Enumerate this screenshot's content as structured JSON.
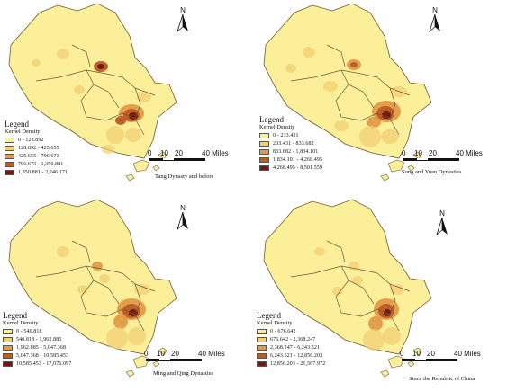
{
  "panels": [
    {
      "north_label": "N",
      "legend_title": "Legend",
      "legend_subtitle": "Kernel Density",
      "classes": [
        "0 - 128.892",
        "128.892 - 425.655",
        "425.655 - 796.673",
        "796.673 - 1,350.881",
        "1,350.881 - 2,246.171"
      ],
      "scale_ticks": [
        "0",
        "10",
        "20",
        "40 Miles"
      ],
      "caption": "Tang Dynasty and before"
    },
    {
      "north_label": "N",
      "legend_title": "Legend",
      "legend_subtitle": "Kernel Density",
      "classes": [
        "0 - 233.431",
        "233.431 - 833.682",
        "833.682 - 1,834.101",
        "1,834.101 - 4,268.495",
        "4,268.495 - 8,501.559"
      ],
      "scale_ticks": [
        "0",
        "10",
        "20",
        "40 Miles"
      ],
      "caption": "Song and Yuan Dynasties"
    },
    {
      "north_label": "N",
      "legend_title": "Legend",
      "legend_subtitle": "Kernel Density",
      "classes": [
        "0 - 540.818",
        "540.818 - 1,962.885",
        "1,962.885 - 5,047.368",
        "5,047.368 - 10,585.453",
        "10,585.453 - 17,076.097"
      ],
      "scale_ticks": [
        "0",
        "10",
        "20",
        "40 Miles"
      ],
      "caption": "Ming and Qing Dynasties"
    },
    {
      "north_label": "N",
      "legend_title": "Legend",
      "legend_subtitle": "Kernel Density",
      "classes": [
        "0 - 676.642",
        "676.642 - 2,368.247",
        "2,368.247 - 6,243.521",
        "6,243.521 - 12,856.203",
        "12,856.203 - 21,567.972"
      ],
      "scale_ticks": [
        "0",
        "10",
        "20",
        "40 Miles"
      ],
      "caption": "Since the Republic of China"
    }
  ],
  "class_colors": [
    "#fbef9a",
    "#f2cf72",
    "#e39a48",
    "#bd5a26",
    "#6e1a10"
  ],
  "base_color": "#fbef9a",
  "boundary_color": "#6b5a3c"
}
